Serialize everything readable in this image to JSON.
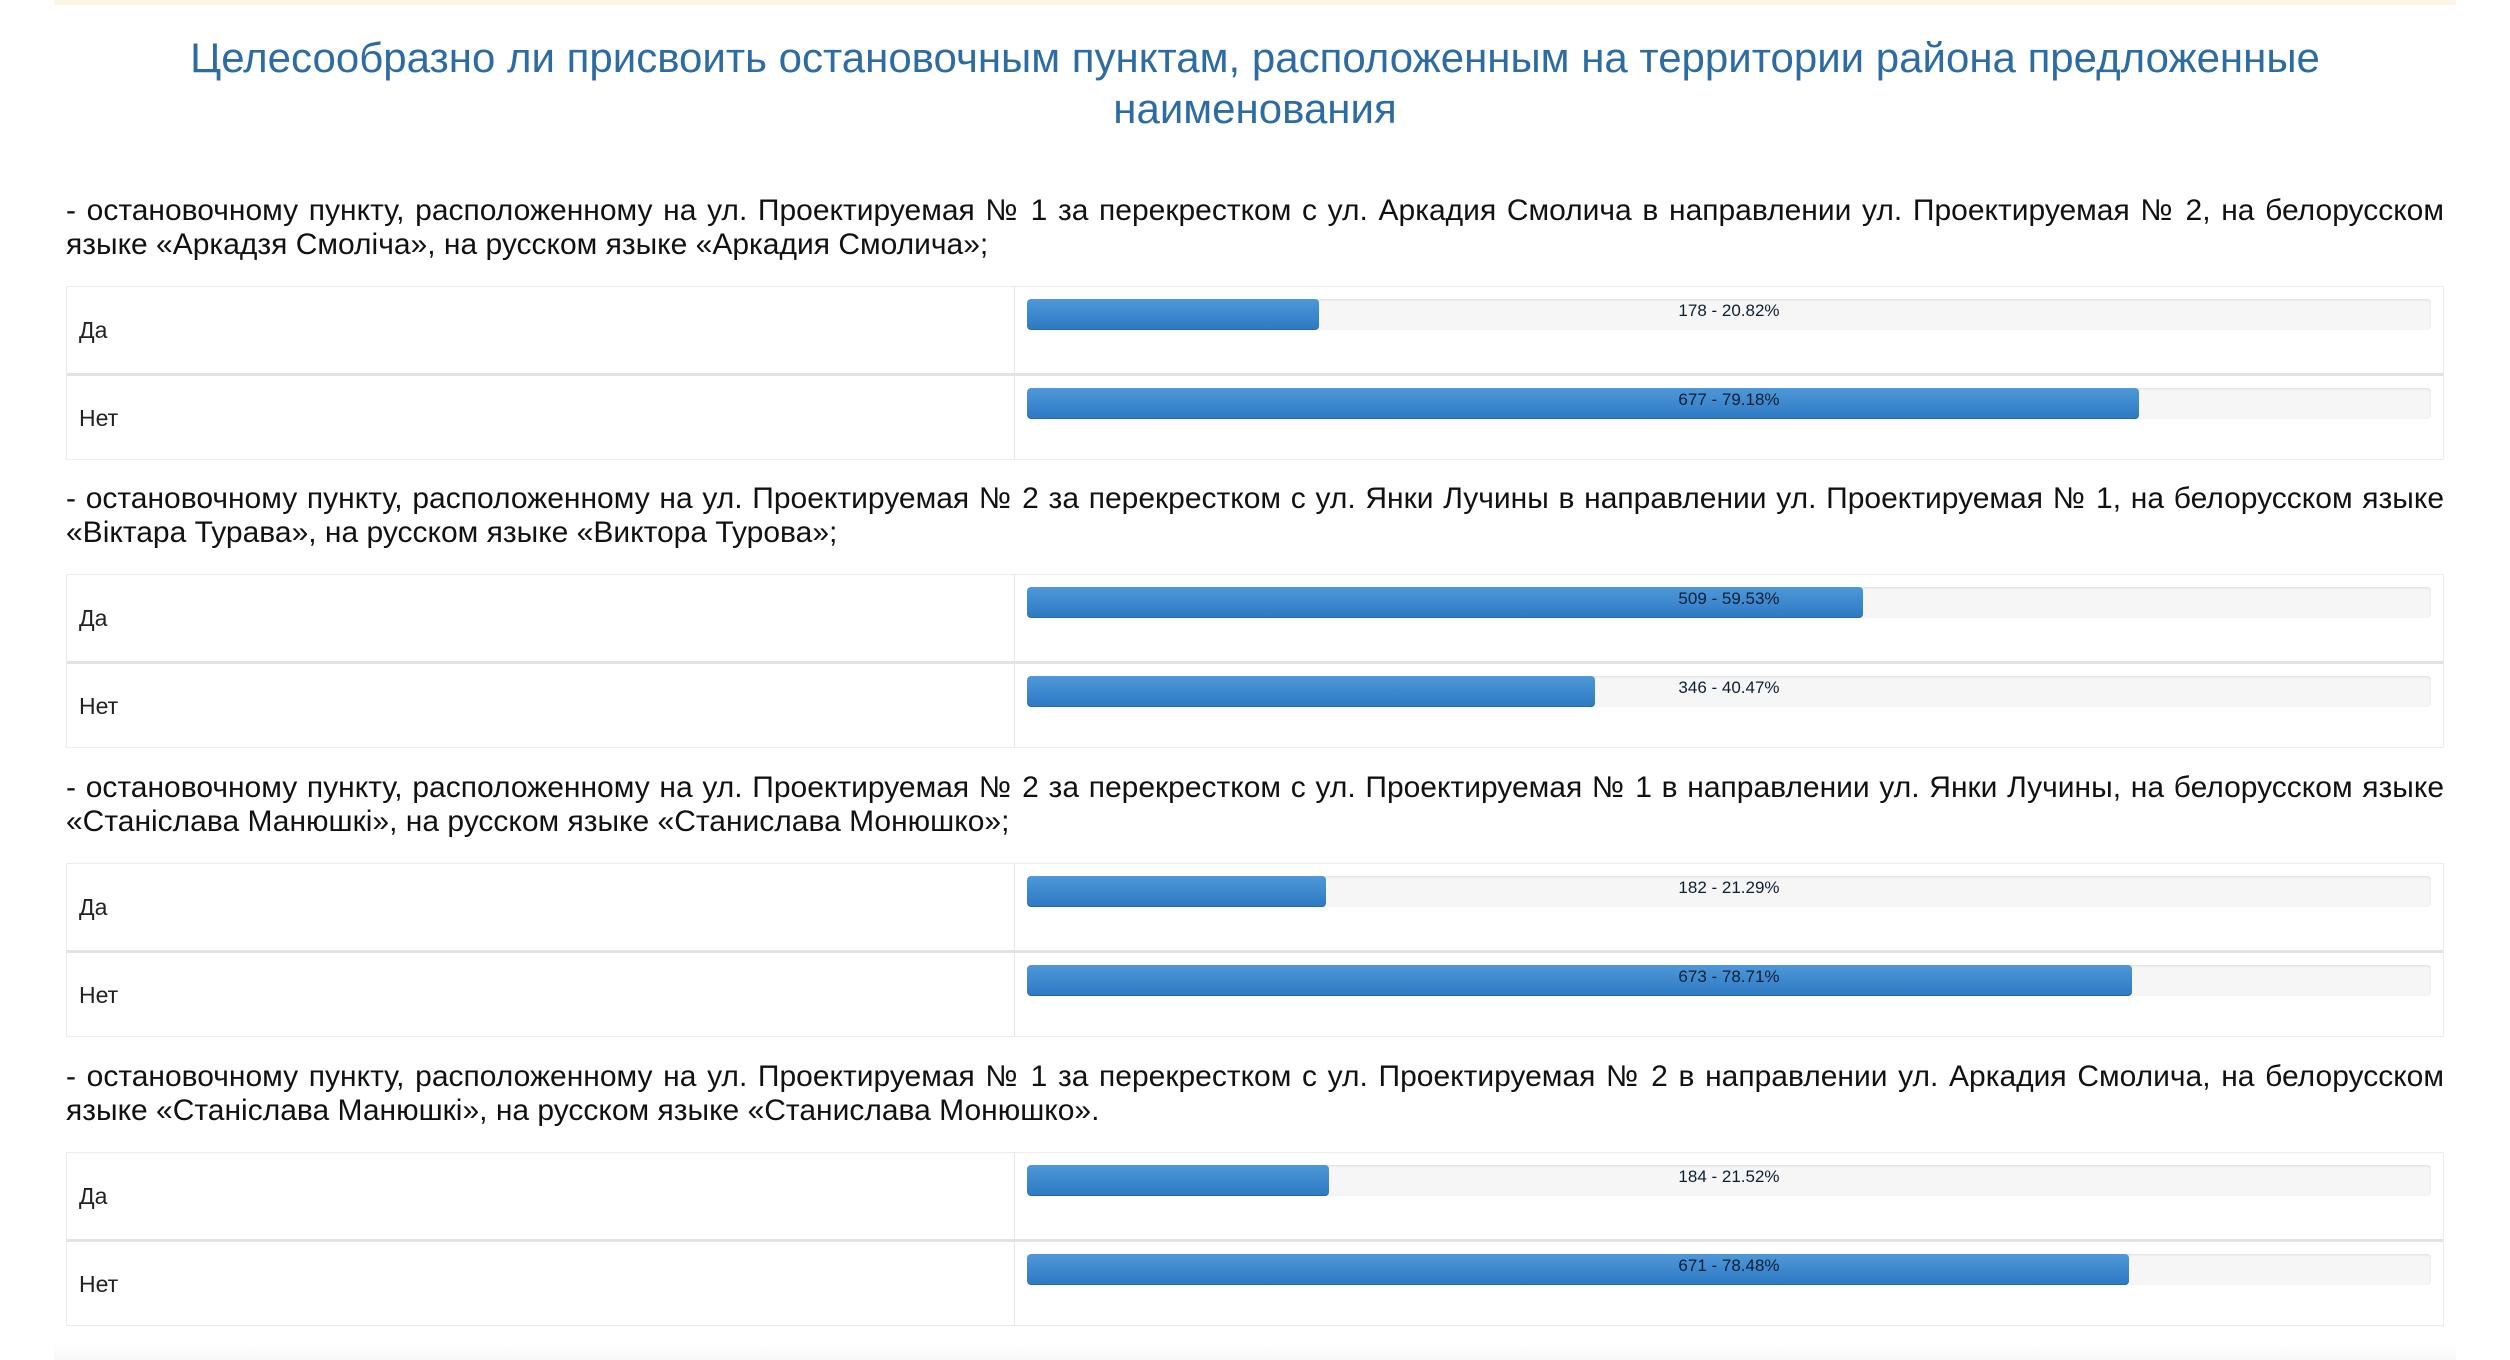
{
  "page": {
    "title": "Целесообразно ли присвоить остановочным пунктам, расположенным на территории района предложенные наименования"
  },
  "colors": {
    "title": "#2d6ca2",
    "bar_fill": "#3a85cc",
    "bar_track": "#f6f6f6"
  },
  "questions": [
    {
      "text": "- остановочному пункту, расположенному на ул. Проектируемая № 1 за перекрестком с ул. Аркадия Смолича в направлении ул. Проектируемая № 2, на белорусском языке «Аркадзя Смоліча», на русском языке «Аркадия Смолича»;",
      "answers": [
        {
          "label": "Да",
          "count": 178,
          "percent": 20.82,
          "bar_text": "178 - 20.82%"
        },
        {
          "label": "Нет",
          "count": 677,
          "percent": 79.18,
          "bar_text": "677 - 79.18%"
        }
      ]
    },
    {
      "text": "- остановочному пункту, расположенному на ул. Проектируемая № 2 за перекрестком с ул. Янки Лучины в направлении ул. Проектируемая № 1, на белорусском языке «Віктара Турава», на русском языке «Виктора Турова»;",
      "answers": [
        {
          "label": "Да",
          "count": 509,
          "percent": 59.53,
          "bar_text": "509 - 59.53%"
        },
        {
          "label": "Нет",
          "count": 346,
          "percent": 40.47,
          "bar_text": "346 - 40.47%"
        }
      ]
    },
    {
      "text": "- остановочному пункту, расположенному на ул. Проектируемая № 2 за перекрестком с ул. Проектируемая № 1 в направлении ул. Янки Лучины, на белорусском языке «Станіслава Манюшкі», на русском языке «Станислава Монюшко»;",
      "answers": [
        {
          "label": "Да",
          "count": 182,
          "percent": 21.29,
          "bar_text": "182 - 21.29%"
        },
        {
          "label": "Нет",
          "count": 673,
          "percent": 78.71,
          "bar_text": "673 - 78.71%"
        }
      ]
    },
    {
      "text": "- остановочному пункту, расположенному на ул. Проектируемая № 1 за перекрестком с ул. Проектируемая № 2 в направлении ул. Аркадия Смолича, на белорусском языке «Станіслава Манюшкі», на русском языке «Станислава Монюшко».",
      "answers": [
        {
          "label": "Да",
          "count": 184,
          "percent": 21.52,
          "bar_text": "184 - 21.52%"
        },
        {
          "label": "Нет",
          "count": 671,
          "percent": 78.48,
          "bar_text": "671 - 78.48%"
        }
      ]
    }
  ]
}
